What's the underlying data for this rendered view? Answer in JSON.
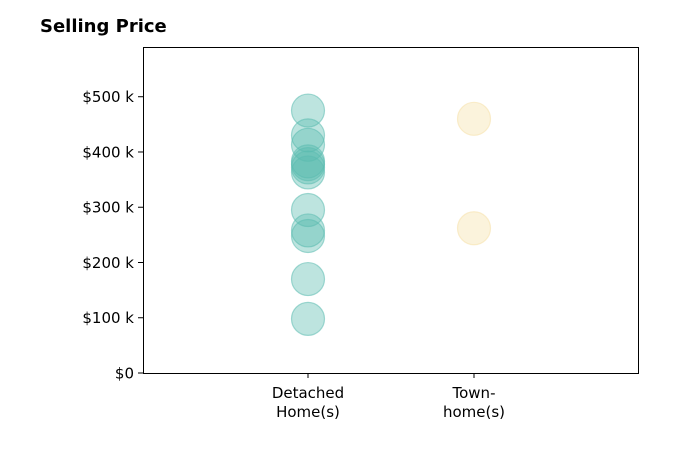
{
  "chart_data": {
    "type": "scatter",
    "title": "Selling Price",
    "xlabel": "",
    "ylabel": "",
    "ylim": [
      0,
      590000
    ],
    "grid": false,
    "y_ticks": [
      {
        "value": 0,
        "label": "$0"
      },
      {
        "value": 100000,
        "label": "$100 k"
      },
      {
        "value": 200000,
        "label": "$200 k"
      },
      {
        "value": 300000,
        "label": "$300 k"
      },
      {
        "value": 400000,
        "label": "$400 k"
      },
      {
        "value": 500000,
        "label": "$500 k"
      }
    ],
    "categories": [
      {
        "lines": [
          "Detached",
          "Home(s)"
        ]
      },
      {
        "lines": [
          "Town-",
          "home(s)"
        ]
      }
    ],
    "series": [
      {
        "category": 0,
        "color": "#5bbcb0",
        "values": [
          475000,
          430000,
          413000,
          383000,
          378000,
          372000,
          363000,
          295000,
          258000,
          248000,
          170000,
          98000
        ]
      },
      {
        "category": 1,
        "color": "#f5e0a8",
        "values": [
          460000,
          262000
        ]
      }
    ]
  }
}
